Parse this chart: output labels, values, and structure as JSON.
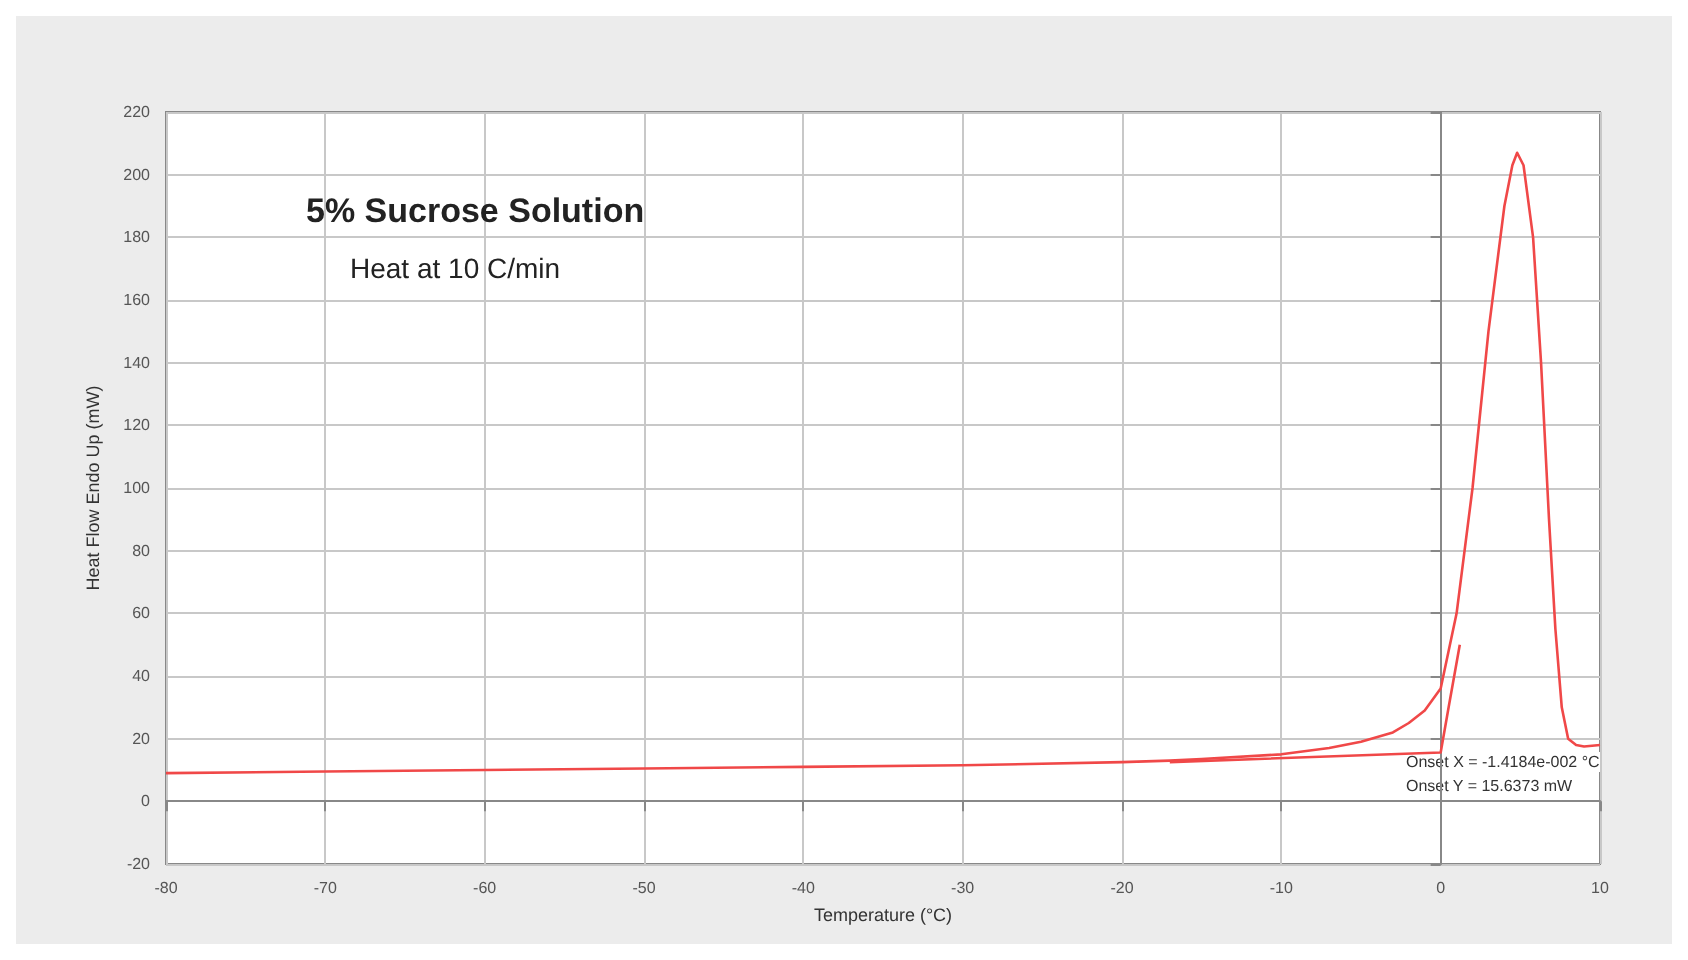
{
  "chart_data": {
    "type": "line",
    "title": "5% Sucrose Solution",
    "subtitle": "Heat at 10 C/min",
    "xlabel": "Temperature (°C)",
    "ylabel": "Heat Flow Endo Up (mW)",
    "annotations": [
      "Onset X = -1.4184e-002 °C",
      "Onset Y = 15.6373 mW"
    ],
    "series": [
      {
        "color": "#f04848",
        "x": [
          -80,
          -70,
          -60,
          -50,
          -40,
          -30,
          -20,
          -17,
          -15,
          -10,
          -7,
          -5,
          -3,
          -2,
          -1,
          0,
          1,
          2,
          3,
          4,
          4.5,
          4.8,
          5.2,
          5.8,
          6.3,
          6.8,
          7.2,
          7.6,
          8,
          8.5,
          9,
          10
        ],
        "values": [
          9,
          9.5,
          10,
          10.5,
          11,
          11.5,
          12.5,
          13,
          13.5,
          15,
          17,
          19,
          22,
          25,
          29,
          36,
          60,
          100,
          150,
          190,
          203,
          207,
          203,
          180,
          140,
          90,
          55,
          30,
          20,
          18,
          17.5,
          18
        ]
      },
      {
        "color": "#f04848",
        "x": [
          -17,
          0,
          0.5,
          1.2
        ],
        "values": [
          12.5,
          15.6,
          30,
          50
        ]
      }
    ],
    "xlim": [
      -80,
      10
    ],
    "xticks": [
      -80,
      -70,
      -60,
      -50,
      -40,
      -30,
      -20,
      -10,
      0,
      10
    ],
    "ylim": [
      -20,
      220
    ],
    "yticks": [
      -20,
      0,
      20,
      40,
      60,
      80,
      100,
      120,
      140,
      160,
      180,
      200,
      220
    ],
    "grid": true,
    "marker": "none",
    "line_style": "solid"
  }
}
